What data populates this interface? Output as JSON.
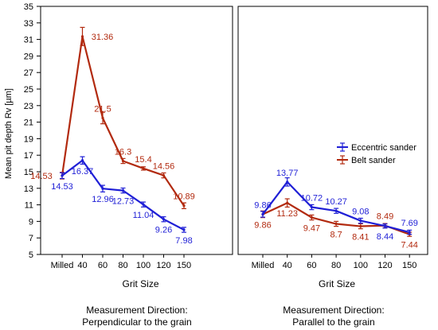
{
  "chart_data": {
    "type": "line",
    "ylabel": "Mean pit depth Rv [µm]",
    "ylim": [
      5,
      35
    ],
    "yticks": [
      5,
      7,
      9,
      11,
      13,
      15,
      17,
      19,
      21,
      23,
      25,
      27,
      29,
      31,
      33,
      35
    ],
    "legend": {
      "placement": "right panel, middle-right"
    },
    "grid": false,
    "series_colors": {
      "Eccentric sander": "#1f1fd6",
      "Belt sander": "#b22a0f"
    },
    "panels": [
      {
        "id": "perpendicular",
        "xlabel": "Grit Size",
        "caption_line1": "Measurement Direction:",
        "caption_line2": "Perpendicular to the grain",
        "categories": [
          "Milled",
          "40",
          "60",
          "80",
          "100",
          "120",
          "150"
        ],
        "series": [
          {
            "name": "Eccentric sander",
            "values": [
              14.53,
              16.37,
              12.96,
              12.73,
              11.04,
              9.26,
              7.98
            ],
            "errors": [
              0.35,
              0.45,
              0.4,
              0.3,
              0.3,
              0.3,
              0.3
            ],
            "labels": [
              "14.53",
              "16.37",
              "12.96",
              "12.73",
              "11.04",
              "9.26",
              "7.98"
            ]
          },
          {
            "name": "Belt sander",
            "values": [
              14.53,
              31.36,
              21.5,
              16.3,
              15.4,
              14.56,
              10.89
            ],
            "errors": [
              0.4,
              1.1,
              0.7,
              0.3,
              0.2,
              0.3,
              0.35
            ],
            "labels": [
              "14.53",
              "31.36",
              "21.5",
              "16.3",
              "15.4",
              "14.56",
              "10.89"
            ]
          }
        ]
      },
      {
        "id": "parallel",
        "xlabel": "Grit Size",
        "caption_line1": "Measurement Direction:",
        "caption_line2": "Parallel to the grain",
        "categories": [
          "Milled",
          "40",
          "60",
          "80",
          "100",
          "120",
          "150"
        ],
        "legend": [
          "Eccentric sander",
          "Belt sander"
        ],
        "series": [
          {
            "name": "Eccentric sander",
            "values": [
              9.86,
              13.77,
              10.72,
              10.27,
              9.08,
              8.44,
              7.69
            ],
            "errors": [
              0.35,
              0.5,
              0.3,
              0.3,
              0.3,
              0.25,
              0.25
            ],
            "labels": [
              "9.86",
              "13.77",
              "10.72",
              "10.27",
              "9.08",
              "8.44",
              "7.69"
            ]
          },
          {
            "name": "Belt sander",
            "values": [
              9.86,
              11.23,
              9.47,
              8.7,
              8.41,
              8.49,
              7.44
            ],
            "errors": [
              0.4,
              0.5,
              0.3,
              0.3,
              0.3,
              0.25,
              0.25
            ],
            "labels": [
              "9.86",
              "11.23",
              "9.47",
              "8.7",
              "8.41",
              "8.49",
              "7.44"
            ]
          }
        ]
      }
    ]
  }
}
